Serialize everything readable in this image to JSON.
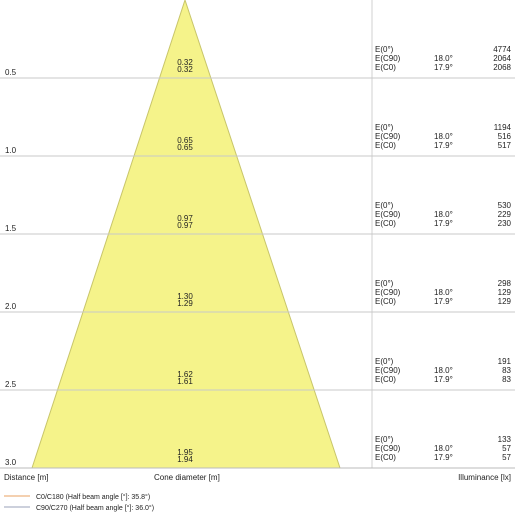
{
  "labels": {
    "distance": "Distance [m]",
    "cone": "Cone diameter [m]",
    "illuminance": "Illuminance [lx]"
  },
  "legend": [
    {
      "text": "C0/C180 (Half beam angle [°]: 35.8°)",
      "color": "#e8a060"
    },
    {
      "text": "C90/C270 (Half beam angle [°]: 36.0°)",
      "color": "#9aa0b8"
    }
  ],
  "rows": [
    {
      "distance": "0.5",
      "d1": "0.32",
      "d2": "0.32",
      "e": [
        {
          "label": "E(0°)",
          "angle": "",
          "value": "4774"
        },
        {
          "label": "E(C90)",
          "angle": "18.0°",
          "value": "2064"
        },
        {
          "label": "E(C0)",
          "angle": "17.9°",
          "value": "2068"
        }
      ]
    },
    {
      "distance": "1.0",
      "d1": "0.65",
      "d2": "0.65",
      "e": [
        {
          "label": "E(0°)",
          "angle": "",
          "value": "1194"
        },
        {
          "label": "E(C90)",
          "angle": "18.0°",
          "value": "516"
        },
        {
          "label": "E(C0)",
          "angle": "17.9°",
          "value": "517"
        }
      ]
    },
    {
      "distance": "1.5",
      "d1": "0.97",
      "d2": "0.97",
      "e": [
        {
          "label": "E(0°)",
          "angle": "",
          "value": "530"
        },
        {
          "label": "E(C90)",
          "angle": "18.0°",
          "value": "229"
        },
        {
          "label": "E(C0)",
          "angle": "17.9°",
          "value": "230"
        }
      ]
    },
    {
      "distance": "2.0",
      "d1": "1.30",
      "d2": "1.29",
      "e": [
        {
          "label": "E(0°)",
          "angle": "",
          "value": "298"
        },
        {
          "label": "E(C90)",
          "angle": "18.0°",
          "value": "129"
        },
        {
          "label": "E(C0)",
          "angle": "17.9°",
          "value": "129"
        }
      ]
    },
    {
      "distance": "2.5",
      "d1": "1.62",
      "d2": "1.61",
      "e": [
        {
          "label": "E(0°)",
          "angle": "",
          "value": "191"
        },
        {
          "label": "E(C90)",
          "angle": "18.0°",
          "value": "83"
        },
        {
          "label": "E(C0)",
          "angle": "17.9°",
          "value": "83"
        }
      ]
    },
    {
      "distance": "3.0",
      "d1": "1.95",
      "d2": "1.94",
      "e": [
        {
          "label": "E(0°)",
          "angle": "",
          "value": "133"
        },
        {
          "label": "E(C90)",
          "angle": "18.0°",
          "value": "57"
        },
        {
          "label": "E(C0)",
          "angle": "17.9°",
          "value": "57"
        }
      ]
    }
  ],
  "colors": {
    "cone_fill": "#f5f38a",
    "cone_stroke": "#c8c56a",
    "grid": "#c8c8c8"
  }
}
